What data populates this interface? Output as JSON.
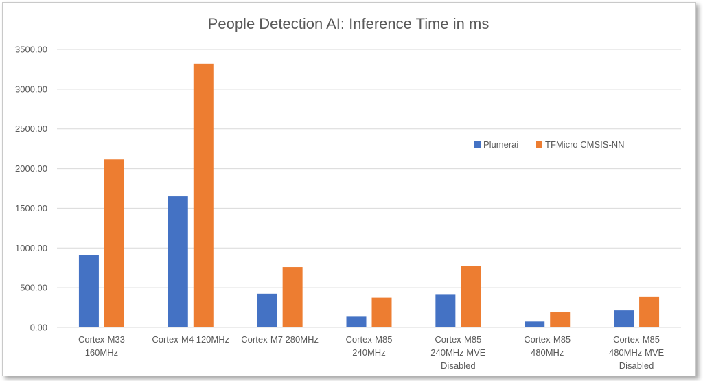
{
  "chart_data": {
    "type": "bar",
    "title": "People Detection AI: Inference Time in ms",
    "categories": [
      [
        "Cortex-M33",
        "160MHz"
      ],
      [
        "Cortex-M4 120MHz"
      ],
      [
        "Cortex-M7 280MHz"
      ],
      [
        "Cortex-M85",
        "240MHz"
      ],
      [
        "Cortex-M85",
        "240MHz MVE",
        "Disabled"
      ],
      [
        "Cortex-M85",
        "480MHz"
      ],
      [
        "Cortex-M85",
        "480MHz MVE",
        "Disabled"
      ]
    ],
    "series": [
      {
        "name": "Plumerai",
        "color": "#4472c4",
        "values": [
          915,
          1650,
          425,
          135,
          420,
          75,
          215
        ]
      },
      {
        "name": "TFMicro CMSIS-NN",
        "color": "#ed7d31",
        "values": [
          2115,
          3320,
          760,
          375,
          770,
          190,
          390
        ]
      }
    ],
    "ylim": [
      0,
      3500
    ],
    "yticks": [
      0,
      500,
      1000,
      1500,
      2000,
      2500,
      3000,
      3500
    ],
    "ytick_labels": [
      "0.00",
      "500.00",
      "1000.00",
      "1500.00",
      "2000.00",
      "2500.00",
      "3000.00",
      "3500.00"
    ],
    "grid": true,
    "legend": "right"
  }
}
